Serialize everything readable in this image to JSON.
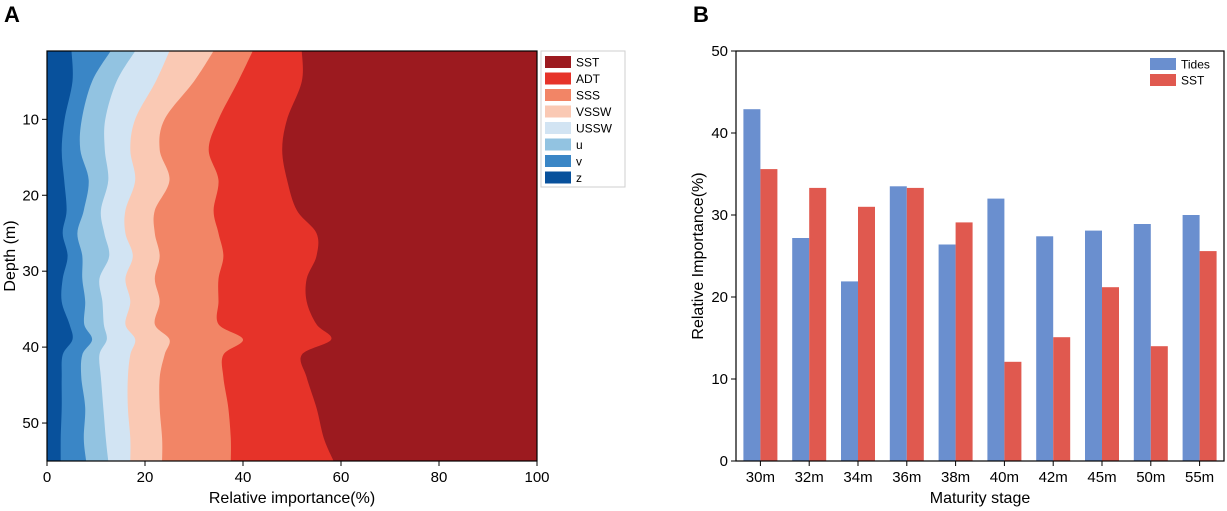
{
  "chart_data": [
    {
      "panel": "A",
      "type": "area",
      "orientation": "horizontal-stacked",
      "title": "",
      "xlabel": "Relative importance(%)",
      "ylabel": "Depth (m)",
      "xlim": [
        0,
        100
      ],
      "ylim": [
        1,
        55
      ],
      "xticks": [
        0,
        20,
        40,
        60,
        80,
        100
      ],
      "yticks": [
        10,
        20,
        30,
        40,
        50
      ],
      "depth": [
        1,
        5,
        10,
        14,
        18,
        22,
        25,
        28,
        31,
        34,
        37,
        39,
        41,
        44,
        48,
        52,
        55
      ],
      "series": [
        {
          "name": "z",
          "color": "#08519c",
          "values": [
            5.0,
            5.2,
            3.6,
            3.0,
            3.5,
            4.0,
            3.2,
            4.2,
            3.2,
            3.0,
            4.6,
            5.2,
            3.2,
            3.0,
            3.0,
            2.8,
            2.8
          ]
        },
        {
          "name": "v",
          "color": "#3a86c6",
          "values": [
            8.0,
            4.0,
            3.5,
            3.8,
            5.0,
            3.5,
            3.0,
            3.0,
            4.0,
            4.8,
            3.0,
            4.0,
            4.0,
            4.0,
            4.8,
            4.7,
            5.2
          ]
        },
        {
          "name": "u",
          "color": "#92c3e1",
          "values": [
            5.0,
            5.0,
            4.8,
            5.0,
            4.0,
            3.5,
            5.5,
            5.5,
            3.5,
            3.5,
            4.0,
            3.0,
            3.5,
            4.0,
            3.7,
            4.5,
            4.5
          ]
        },
        {
          "name": "USSW",
          "color": "#d2e4f3",
          "values": [
            7.0,
            8.0,
            6.1,
            5.2,
            5.5,
            5.0,
            4.3,
            4.8,
            5.3,
            5.7,
            4.4,
            5.8,
            6.3,
            5.5,
            5.0,
            5.0,
            4.5
          ]
        },
        {
          "name": "VSSW",
          "color": "#fac9b4",
          "values": [
            9.0,
            7.8,
            6.0,
            6.0,
            7.0,
            6.0,
            6.0,
            5.5,
            6.0,
            6.0,
            6.0,
            7.0,
            7.0,
            6.5,
            6.5,
            6.5,
            6.5
          ]
        },
        {
          "name": "SSS",
          "color": "#f28566",
          "values": [
            8.0,
            9.0,
            11.0,
            10.0,
            10.0,
            12.0,
            13.0,
            13.0,
            13.0,
            12.0,
            13.0,
            15.0,
            12.0,
            13.0,
            14.0,
            14.0,
            14.0
          ]
        },
        {
          "name": "ADT",
          "color": "#e63329",
          "values": [
            10.0,
            13.0,
            14.0,
            15.0,
            14.0,
            17.0,
            20.0,
            19.0,
            18.0,
            18.0,
            20.0,
            18.0,
            16.0,
            17.0,
            18.0,
            19.0,
            21.0
          ]
        },
        {
          "name": "SST",
          "color": "#9c1a1f",
          "values": [
            48.0,
            48.0,
            51.0,
            52.0,
            51.0,
            49.0,
            45.0,
            45.0,
            47.0,
            47.0,
            45.0,
            42.0,
            48.0,
            47.0,
            45.0,
            43.5,
            41.5
          ]
        }
      ],
      "legend": [
        "SST",
        "ADT",
        "SSS",
        "VSSW",
        "USSW",
        "u",
        "v",
        "z"
      ],
      "legend_position": "top-right"
    },
    {
      "panel": "B",
      "type": "bar",
      "title": "",
      "xlabel": "Maturity stage",
      "ylabel": "Relative Importance(%)",
      "ylim": [
        0,
        50
      ],
      "yticks": [
        0,
        10,
        20,
        30,
        40,
        50
      ],
      "categories": [
        "30m",
        "32m",
        "34m",
        "36m",
        "38m",
        "40m",
        "42m",
        "45m",
        "50m",
        "55m"
      ],
      "series": [
        {
          "name": "Tides",
          "color": "#6a8fcf",
          "values": [
            42.9,
            27.2,
            21.9,
            33.5,
            26.4,
            32.0,
            27.4,
            28.1,
            28.9,
            30.0
          ]
        },
        {
          "name": "SST",
          "color": "#e0594f",
          "values": [
            35.6,
            33.3,
            31.0,
            33.3,
            29.1,
            12.1,
            15.1,
            21.2,
            14.0,
            25.6
          ]
        }
      ],
      "legend_position": "top-right"
    }
  ]
}
